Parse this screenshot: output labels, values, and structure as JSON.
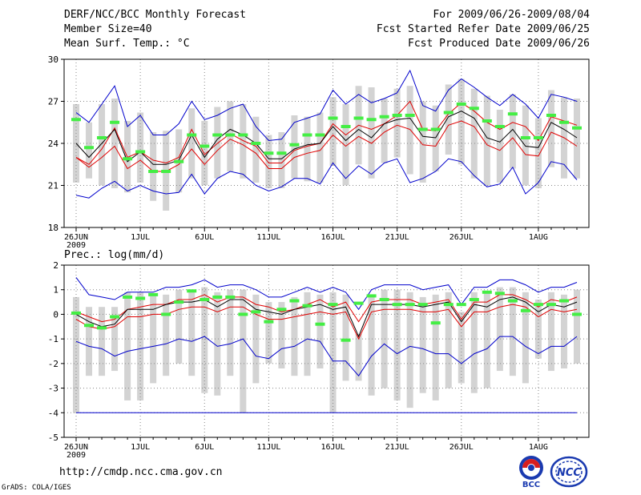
{
  "header": {
    "title": "DERF/NCC/BCC Monthly Forecast",
    "member_size": "Member Size=40",
    "variable": "Mean Surf. Temp.: °C",
    "period": "For 2009/06/26-2009/08/04",
    "start_date": "Fcst Started Refer Date 2009/06/25",
    "produced_date": "Fcst Produced Date 2009/06/26"
  },
  "footer": {
    "url": "http://cmdp.ncc.cma.gov.cn",
    "credit": "GrADS: COLA/IGES",
    "logo_bcc": "BCC",
    "logo_ncc": "NCC"
  },
  "colors": {
    "box": "#d3d3d3",
    "mean": "#000000",
    "spread": "#e00000",
    "extreme": "#0000cc",
    "highlight": "#44ee44",
    "grid": "#888888"
  },
  "chart_data": [
    {
      "type": "line",
      "title": "Mean Surf. Temp.: °C",
      "x_tick_labels": [
        "26JUN",
        "1JUL",
        "6JUL",
        "11JUL",
        "16JUL",
        "21JUL",
        "26JUL",
        "1AUG"
      ],
      "x_tick_days": [
        0,
        5,
        10,
        15,
        20,
        25,
        30,
        36
      ],
      "year_label": "2009",
      "ylim": [
        18,
        30
      ],
      "yticks": [
        18,
        21,
        24,
        27,
        30
      ],
      "days": 39,
      "max_line": [
        26.2,
        25.5,
        26.8,
        28.1,
        25.2,
        26.0,
        24.6,
        24.6,
        25.4,
        27.0,
        25.7,
        26.0,
        26.5,
        26.8,
        25.2,
        24.2,
        24.3,
        25.5,
        25.8,
        26.1,
        27.8,
        26.8,
        27.5,
        26.9,
        27.2,
        27.6,
        29.2,
        26.7,
        26.3,
        27.8,
        28.6,
        28.0,
        27.3,
        26.7,
        27.5,
        26.8,
        25.8,
        27.5,
        27.3,
        27.0
      ],
      "upper_line": [
        23.0,
        22.5,
        23.6,
        25.1,
        23.0,
        23.4,
        22.8,
        22.6,
        23.0,
        25.0,
        23.2,
        24.0,
        24.7,
        24.2,
        23.8,
        22.6,
        22.6,
        23.5,
        23.8,
        24.0,
        25.4,
        24.6,
        25.3,
        25.0,
        25.4,
        26.0,
        27.0,
        25.0,
        24.9,
        26.1,
        26.9,
        26.3,
        25.5,
        25.0,
        25.5,
        25.2,
        24.2,
        25.9,
        25.6,
        25.3
      ],
      "mean_line": [
        24.0,
        23.0,
        24.0,
        25.0,
        22.7,
        23.4,
        22.5,
        22.5,
        22.8,
        24.6,
        23.0,
        24.3,
        25.0,
        24.6,
        24.0,
        22.9,
        22.9,
        23.6,
        23.9,
        24.0,
        25.2,
        24.2,
        25.0,
        24.4,
        25.4,
        25.7,
        25.8,
        24.5,
        24.4,
        25.9,
        26.3,
        25.8,
        24.4,
        24.1,
        25.0,
        23.8,
        23.7,
        25.5,
        25.0,
        24.4
      ],
      "lower_line": [
        23.0,
        22.3,
        23.0,
        23.8,
        22.2,
        22.8,
        22.0,
        22.0,
        22.5,
        23.6,
        22.5,
        23.5,
        24.3,
        23.9,
        23.3,
        22.2,
        22.2,
        23.0,
        23.3,
        23.5,
        24.6,
        23.8,
        24.5,
        24.0,
        24.8,
        25.3,
        25.0,
        23.9,
        23.8,
        25.3,
        25.6,
        25.2,
        23.9,
        23.5,
        24.4,
        23.2,
        23.1,
        24.8,
        24.4,
        23.8
      ],
      "min_line": [
        20.3,
        20.1,
        20.8,
        21.3,
        20.6,
        21.0,
        20.6,
        20.4,
        20.5,
        21.8,
        20.4,
        21.5,
        22.0,
        21.8,
        21.0,
        20.6,
        20.9,
        21.5,
        21.5,
        21.1,
        22.6,
        21.5,
        22.4,
        21.8,
        22.6,
        22.9,
        21.2,
        21.5,
        22.0,
        22.9,
        22.7,
        21.7,
        20.9,
        21.1,
        22.3,
        20.4,
        21.2,
        22.7,
        22.5,
        21.4
      ],
      "box_high": [
        26.8,
        25.5,
        26.8,
        27.2,
        25.6,
        26.2,
        24.8,
        24.9,
        25.0,
        26.5,
        25.6,
        26.6,
        27.0,
        26.8,
        25.9,
        24.6,
        24.8,
        26.0,
        25.9,
        26.2,
        27.3,
        26.8,
        28.1,
        28.0,
        27.2,
        27.9,
        28.1,
        27.0,
        26.7,
        28.2,
        28.6,
        27.9,
        27.4,
        26.4,
        27.5,
        26.7,
        25.8,
        27.8,
        27.3,
        27.2
      ],
      "box_low": [
        21.2,
        21.5,
        21.0,
        20.8,
        20.5,
        21.2,
        19.9,
        19.2,
        20.5,
        21.5,
        21.0,
        21.5,
        22.0,
        21.5,
        21.2,
        20.8,
        20.8,
        21.5,
        21.3,
        21.2,
        22.4,
        21.0,
        22.5,
        21.5,
        22.6,
        23.0,
        21.8,
        21.2,
        22.0,
        23.2,
        22.5,
        21.5,
        21.0,
        21.2,
        22.2,
        21.0,
        20.8,
        22.3,
        21.5,
        21.5
      ],
      "highlight": [
        25.7,
        23.7,
        24.4,
        25.5,
        22.9,
        23.4,
        22.0,
        22.0,
        22.7,
        24.6,
        23.8,
        24.6,
        24.6,
        24.6,
        24.0,
        23.3,
        23.3,
        23.9,
        24.6,
        24.6,
        25.8,
        25.2,
        25.8,
        25.7,
        25.9,
        26.0,
        26.0,
        25.0,
        25.0,
        26.2,
        26.8,
        26.5,
        25.6,
        25.2,
        26.1,
        24.4,
        24.4,
        26.0,
        25.5,
        25.1
      ]
    },
    {
      "type": "line",
      "title": "Prec.: log(mm/d)",
      "x_tick_labels": [
        "26JUN",
        "1JUL",
        "6JUL",
        "11JUL",
        "16JUL",
        "21JUL",
        "26JUL",
        "1AUG"
      ],
      "x_tick_days": [
        0,
        5,
        10,
        15,
        20,
        25,
        30,
        36
      ],
      "year_label": "2009",
      "ylim": [
        -5,
        2
      ],
      "yticks": [
        -5,
        -4,
        -3,
        -2,
        -1,
        0,
        1,
        2
      ],
      "days": 39,
      "max_line": [
        1.5,
        0.8,
        0.7,
        0.6,
        0.9,
        0.9,
        0.9,
        1.1,
        1.1,
        1.2,
        1.4,
        1.1,
        1.2,
        1.2,
        1.0,
        0.7,
        0.7,
        0.9,
        1.1,
        0.9,
        1.1,
        0.9,
        0.2,
        1.0,
        1.2,
        1.2,
        1.2,
        1.0,
        1.1,
        1.2,
        0.4,
        1.1,
        1.1,
        1.4,
        1.4,
        1.2,
        0.9,
        1.1,
        1.1,
        1.3
      ],
      "upper_line": [
        0.1,
        -0.1,
        -0.3,
        -0.2,
        0.2,
        0.3,
        0.4,
        0.4,
        0.6,
        0.6,
        0.8,
        0.5,
        0.7,
        0.7,
        0.4,
        0.3,
        0.1,
        0.2,
        0.4,
        0.6,
        0.3,
        0.5,
        -0.3,
        0.5,
        0.6,
        0.6,
        0.6,
        0.4,
        0.5,
        0.6,
        -0.2,
        0.5,
        0.5,
        0.8,
        0.8,
        0.6,
        0.3,
        0.6,
        0.5,
        0.7
      ],
      "mean_line": [
        0.0,
        -0.3,
        -0.5,
        -0.4,
        0.2,
        0.2,
        0.2,
        0.4,
        0.5,
        0.5,
        0.6,
        0.3,
        0.6,
        0.6,
        0.2,
        0.1,
        0.0,
        0.2,
        0.3,
        0.4,
        0.2,
        0.3,
        -0.9,
        0.4,
        0.4,
        0.4,
        0.4,
        0.3,
        0.4,
        0.5,
        -0.3,
        0.4,
        0.3,
        0.6,
        0.7,
        0.5,
        0.1,
        0.4,
        0.3,
        0.5
      ],
      "lower_line": [
        -0.2,
        -0.5,
        -0.6,
        -0.5,
        -0.1,
        -0.1,
        0.0,
        0.0,
        0.2,
        0.3,
        0.3,
        0.1,
        0.3,
        0.3,
        0.0,
        -0.2,
        -0.2,
        -0.1,
        0.0,
        0.1,
        0.0,
        0.1,
        -1.0,
        0.1,
        0.2,
        0.2,
        0.2,
        0.1,
        0.1,
        0.2,
        -0.5,
        0.1,
        0.1,
        0.3,
        0.4,
        0.3,
        -0.1,
        0.2,
        0.1,
        0.2
      ],
      "min_line": [
        -1.1,
        -1.3,
        -1.4,
        -1.7,
        -1.5,
        -1.4,
        -1.3,
        -1.2,
        -1.0,
        -1.1,
        -0.9,
        -1.3,
        -1.2,
        -1.0,
        -1.7,
        -1.8,
        -1.4,
        -1.3,
        -1.0,
        -1.1,
        -1.9,
        -1.9,
        -2.5,
        -1.7,
        -1.2,
        -1.6,
        -1.3,
        -1.4,
        -1.6,
        -1.6,
        -2.0,
        -1.6,
        -1.4,
        -0.9,
        -0.9,
        -1.3,
        -1.6,
        -1.3,
        -1.3,
        -0.9
      ],
      "box_high": [
        0.7,
        0.3,
        0.3,
        0.3,
        0.9,
        0.9,
        0.8,
        0.8,
        1.0,
        1.0,
        1.1,
        0.9,
        1.0,
        1.0,
        0.8,
        0.5,
        0.5,
        0.7,
        0.9,
        0.8,
        0.9,
        0.8,
        -0.8,
        0.8,
        1.0,
        1.0,
        0.9,
        0.7,
        0.8,
        0.9,
        0.1,
        0.9,
        0.9,
        1.1,
        1.1,
        0.9,
        0.6,
        0.9,
        0.8,
        1.0
      ],
      "box_low": [
        -4.0,
        -2.5,
        -2.5,
        -2.3,
        -3.5,
        -3.5,
        -2.8,
        -2.5,
        -2.0,
        -2.5,
        -3.2,
        -3.3,
        -2.5,
        -4.0,
        -2.8,
        -2.0,
        -2.2,
        -2.5,
        -2.5,
        -2.2,
        -4.0,
        -2.7,
        -2.7,
        -3.3,
        -3.0,
        -3.5,
        -3.8,
        -3.2,
        -3.5,
        -3.0,
        -2.8,
        -3.2,
        -3.0,
        -2.3,
        -2.5,
        -2.8,
        -1.8,
        -2.3,
        -2.2,
        -2.0
      ],
      "floor_line": -4.0,
      "highlight": [
        0.05,
        -0.45,
        -0.55,
        -0.1,
        0.7,
        0.65,
        0.8,
        0.0,
        0.5,
        0.95,
        0.6,
        0.7,
        0.7,
        0.0,
        0.1,
        -0.3,
        0.2,
        0.55,
        0.35,
        -0.4,
        0.4,
        -1.05,
        0.45,
        0.75,
        0.6,
        0.4,
        0.4,
        0.4,
        -0.35,
        0.4,
        0.4,
        0.6,
        0.9,
        0.85,
        0.55,
        0.15,
        0.4,
        0.4,
        0.55,
        0.0
      ]
    }
  ]
}
